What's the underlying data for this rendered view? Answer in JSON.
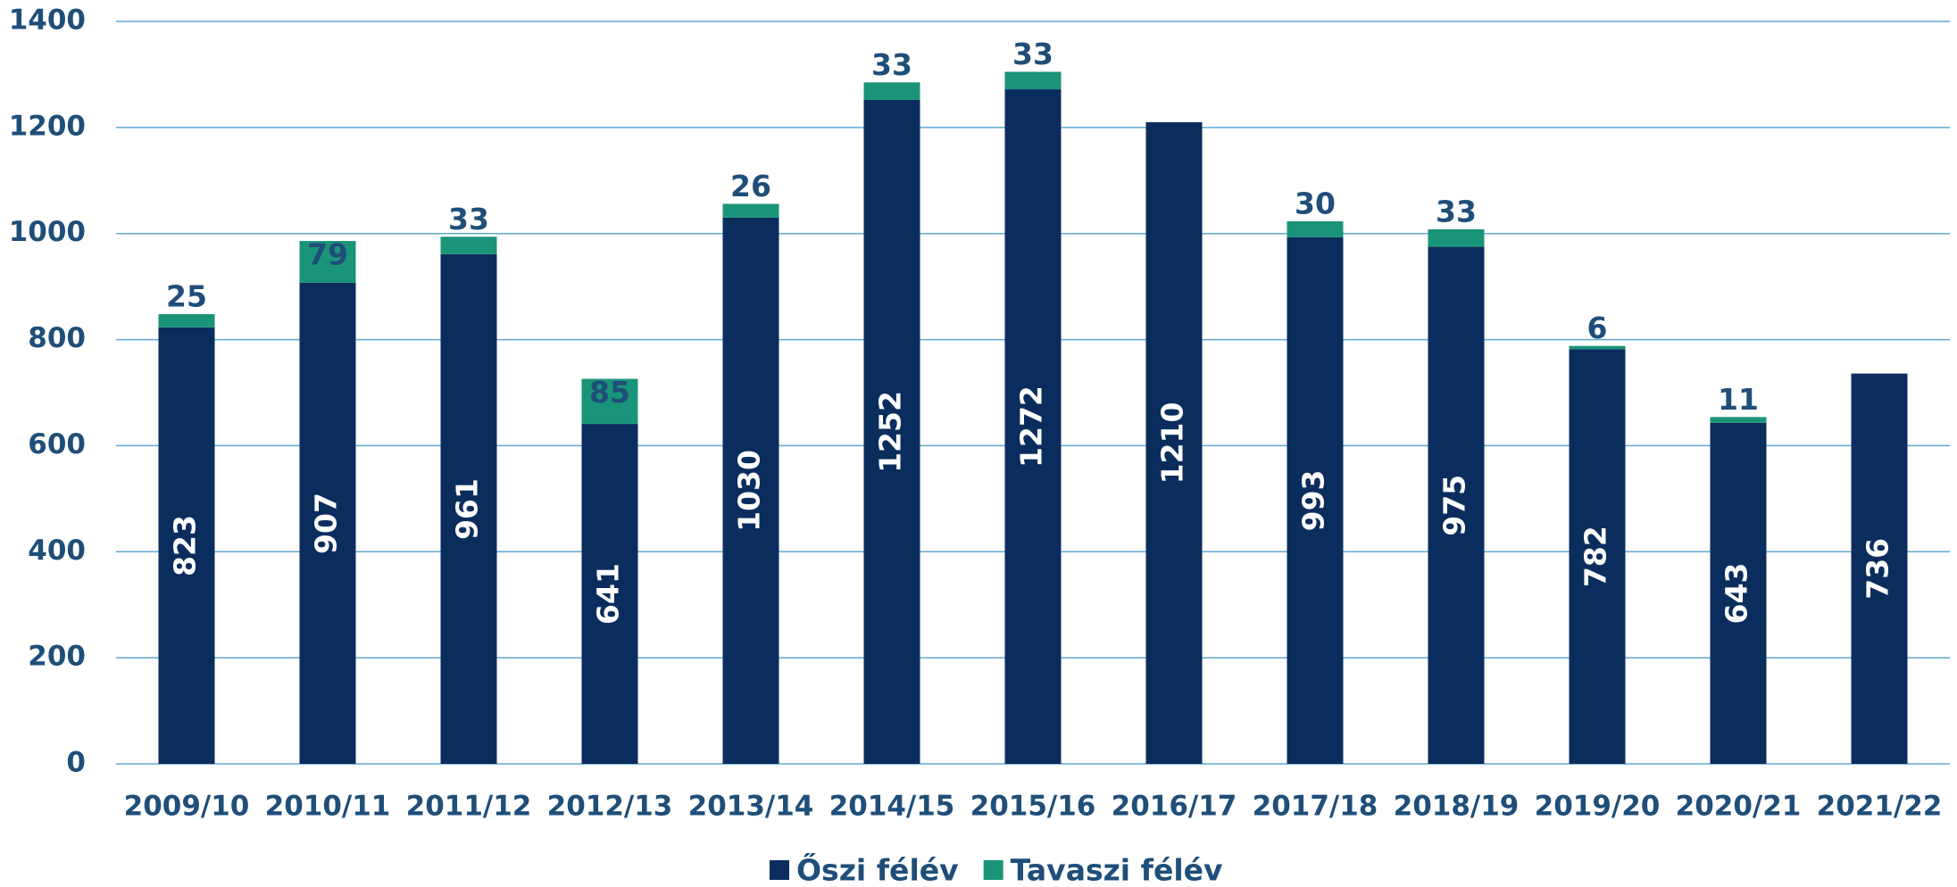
{
  "chart_data": {
    "type": "bar",
    "stacked": true,
    "categories": [
      "2009/10",
      "2010/11",
      "2011/12",
      "2012/13",
      "2013/14",
      "2014/15",
      "2015/16",
      "2016/17",
      "2017/18",
      "2018/19",
      "2019/20",
      "2020/21",
      "2021/22"
    ],
    "series": [
      {
        "name": "Őszi félév",
        "color": "#0b2d5e",
        "values": [
          823,
          907,
          961,
          641,
          1030,
          1252,
          1272,
          1210,
          993,
          975,
          782,
          643,
          736
        ]
      },
      {
        "name": "Tavaszi félév",
        "color": "#1a9479",
        "values": [
          25,
          79,
          33,
          85,
          26,
          33,
          33,
          null,
          30,
          33,
          6,
          11,
          null
        ]
      }
    ],
    "ylim": [
      0,
      1400
    ],
    "yticks": [
      0,
      200,
      400,
      600,
      800,
      1000,
      1200,
      1400
    ],
    "grid": true,
    "legend": "bottom"
  }
}
